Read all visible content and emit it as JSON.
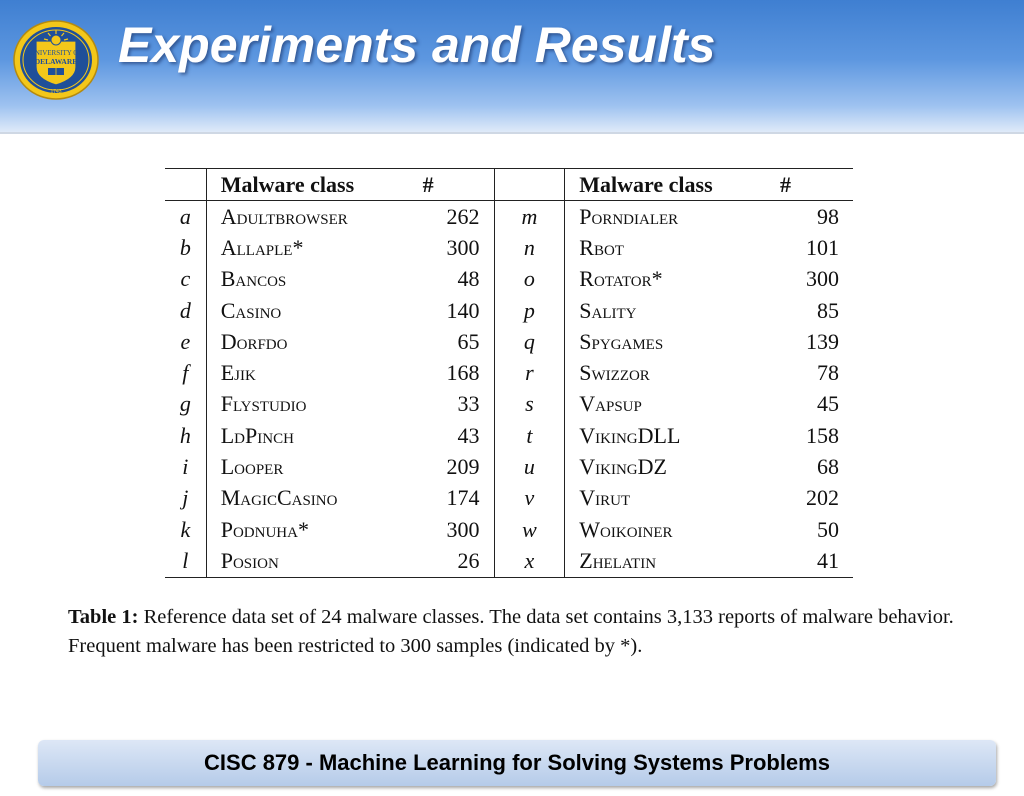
{
  "header": {
    "title": "Experiments and Results",
    "logo": {
      "icon": "university-of-delaware-seal",
      "text_line1": "UNIVERSITY OF",
      "text_line2": "DELAWARE",
      "year": "1743",
      "primary_color": "#1f4f99",
      "accent_color": "#f3c71a"
    }
  },
  "table": {
    "headers": {
      "letter": "",
      "class": "Malware class",
      "count": "#"
    },
    "left_rows": [
      {
        "letter": "a",
        "name": "Adultbrowser",
        "count": "262"
      },
      {
        "letter": "b",
        "name": "Allaple*",
        "count": "300"
      },
      {
        "letter": "c",
        "name": "Bancos",
        "count": "48"
      },
      {
        "letter": "d",
        "name": "Casino",
        "count": "140"
      },
      {
        "letter": "e",
        "name": "Dorfdo",
        "count": "65"
      },
      {
        "letter": "f",
        "name": "Ejik",
        "count": "168"
      },
      {
        "letter": "g",
        "name": "Flystudio",
        "count": "33"
      },
      {
        "letter": "h",
        "name": "LdPinch",
        "count": "43"
      },
      {
        "letter": "i",
        "name": "Looper",
        "count": "209"
      },
      {
        "letter": "j",
        "name": "MagicCasino",
        "count": "174"
      },
      {
        "letter": "k",
        "name": "Podnuha*",
        "count": "300"
      },
      {
        "letter": "l",
        "name": "Posion",
        "count": "26"
      }
    ],
    "right_rows": [
      {
        "letter": "m",
        "name": "Porndialer",
        "count": "98"
      },
      {
        "letter": "n",
        "name": "Rbot",
        "count": "101"
      },
      {
        "letter": "o",
        "name": "Rotator*",
        "count": "300"
      },
      {
        "letter": "p",
        "name": "Sality",
        "count": "85"
      },
      {
        "letter": "q",
        "name": "Spygames",
        "count": "139"
      },
      {
        "letter": "r",
        "name": "Swizzor",
        "count": "78"
      },
      {
        "letter": "s",
        "name": "Vapsup",
        "count": "45"
      },
      {
        "letter": "t",
        "name": "VikingDLL",
        "count": "158"
      },
      {
        "letter": "u",
        "name": "VikingDZ",
        "count": "68"
      },
      {
        "letter": "v",
        "name": "Virut",
        "count": "202"
      },
      {
        "letter": "w",
        "name": "Woikoiner",
        "count": "50"
      },
      {
        "letter": "x",
        "name": "Zhelatin",
        "count": "41"
      }
    ]
  },
  "caption": {
    "label": "Table 1:",
    "text": "Reference data set of 24 malware classes.  The data set contains 3,133 reports of malware behavior. Frequent malware has been restricted to 300 samples (indicated by *)."
  },
  "footer": {
    "text": "CISC 879 - Machine Learning for Solving Systems Problems"
  }
}
